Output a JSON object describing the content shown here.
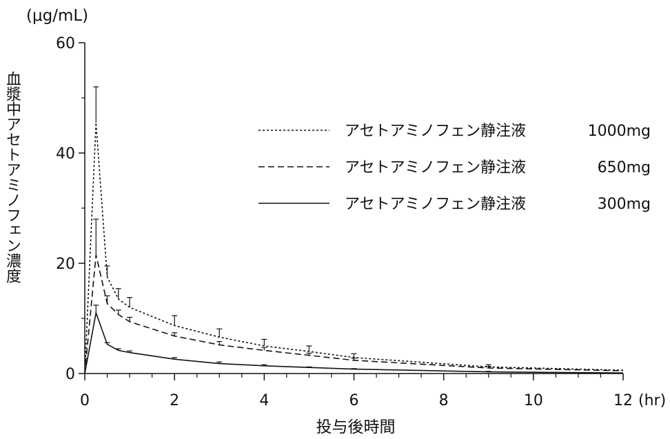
{
  "chart_data": {
    "type": "line",
    "unit_label": "(μg/mL)",
    "ylabel": "血漿中アセトアミノフェン濃度",
    "xlabel": "投与後時間",
    "x_unit": "(hr)",
    "xlim": [
      0,
      12
    ],
    "ylim": [
      0,
      60
    ],
    "x_ticks": [
      "0",
      "2",
      "4",
      "6",
      "8",
      "10",
      "12"
    ],
    "y_ticks": [
      "0",
      "20",
      "40",
      "60"
    ],
    "legend_position": "top-right",
    "grid": false,
    "x": [
      0,
      0.25,
      0.5,
      0.75,
      1,
      2,
      3,
      4,
      5,
      6,
      9,
      12
    ],
    "series": [
      {
        "name": "アセトアミノフェン静注液",
        "dose": "1000mg",
        "style": "dotted",
        "values": [
          0,
          45.5,
          17.5,
          13.5,
          12.0,
          8.7,
          6.6,
          5.0,
          4.0,
          2.9,
          1.2,
          0.6
        ],
        "sd": [
          0,
          6.5,
          2.0,
          1.9,
          1.8,
          1.8,
          1.5,
          1.2,
          1.0,
          0.7,
          0.4,
          0
        ]
      },
      {
        "name": "アセトアミノフェン静注液",
        "dose": "650mg",
        "style": "dashed",
        "values": [
          0,
          21.5,
          12.7,
          10.7,
          9.4,
          6.8,
          5.2,
          4.2,
          3.3,
          2.4,
          1.0,
          0.5
        ],
        "sd": [
          0,
          6.5,
          1.4,
          0.8,
          0.8,
          0.6,
          0.6,
          0.5,
          0.4,
          0.4,
          0.3,
          0
        ]
      },
      {
        "name": "アセトアミノフェン静注液",
        "dose": "300mg",
        "style": "solid",
        "values": [
          0,
          11.0,
          5.3,
          4.2,
          3.8,
          2.6,
          1.8,
          1.4,
          1.1,
          0.8,
          0.3,
          0.1
        ],
        "sd": [
          0,
          1.4,
          0.3,
          0.3,
          0.3,
          0.3,
          0.3,
          0.2,
          0.1,
          0.1,
          0.1,
          0
        ]
      }
    ]
  }
}
